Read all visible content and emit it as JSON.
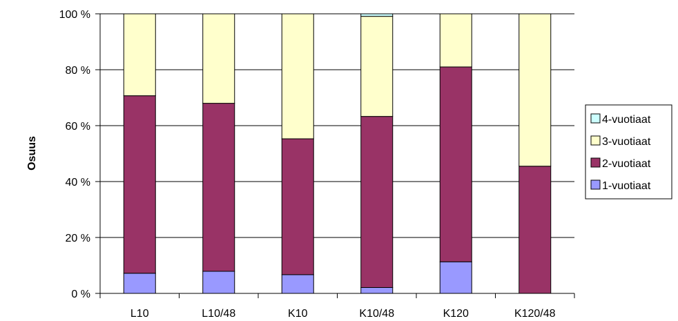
{
  "chart_data": {
    "type": "bar",
    "stacked": true,
    "ylabel": "Osuus",
    "xlabel": "",
    "ylim": [
      0,
      100
    ],
    "y_ticks": [
      "0 %",
      "20 %",
      "40 %",
      "60 %",
      "80 %",
      "100 %"
    ],
    "grid": true,
    "legend_position": "right",
    "categories": [
      "L10",
      "L10/48",
      "K10",
      "K10/48",
      "K120",
      "K120/48"
    ],
    "series": [
      {
        "name": "1-vuotiaat",
        "color": "#9999ff",
        "values": [
          7.2,
          7.9,
          6.7,
          2.1,
          11.3,
          0
        ]
      },
      {
        "name": "2-vuotiaat",
        "color": "#993366",
        "values": [
          63.5,
          60.1,
          48.6,
          61.2,
          69.7,
          45.5
        ]
      },
      {
        "name": "3-vuotiaat",
        "color": "#ffffcc",
        "values": [
          29.3,
          32.0,
          44.7,
          35.8,
          19.0,
          54.5
        ]
      },
      {
        "name": "4-vuotiaat",
        "color": "#ccffff",
        "values": [
          0,
          0,
          0,
          0.9,
          0,
          0
        ]
      }
    ]
  }
}
